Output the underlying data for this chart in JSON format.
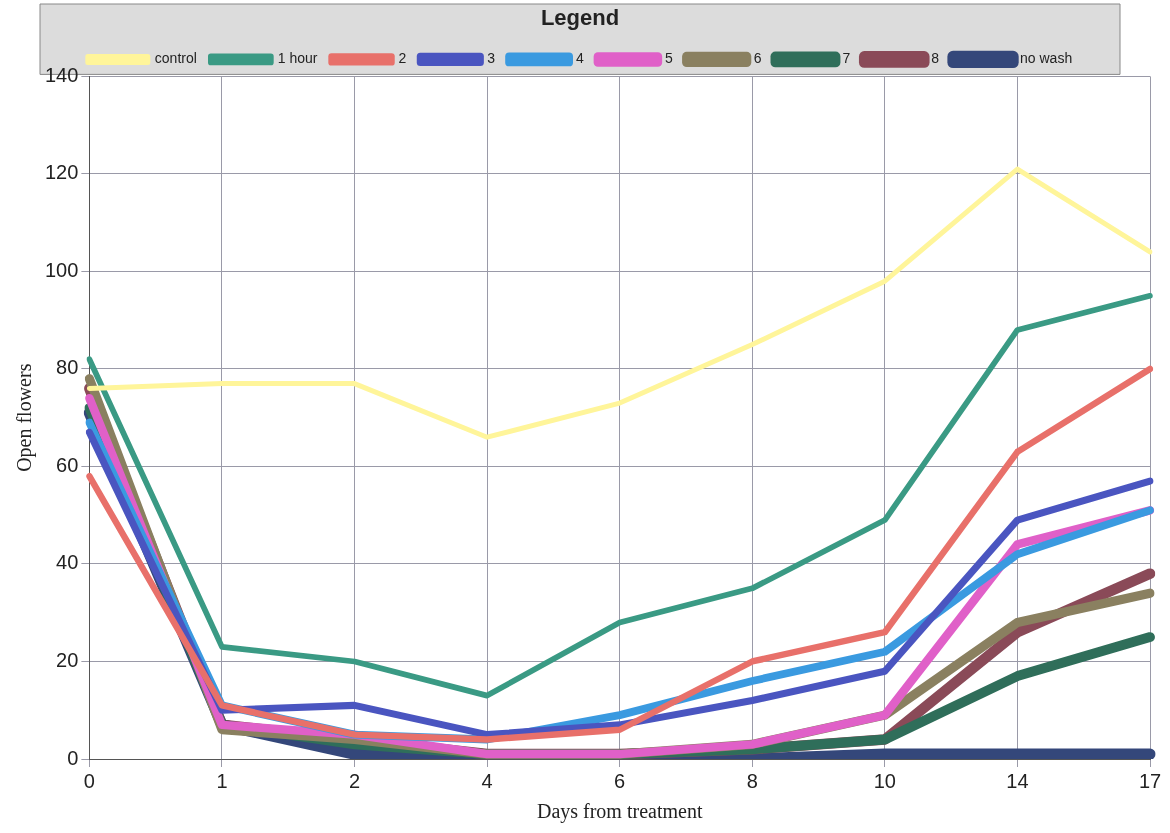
{
  "chart_data": {
    "type": "line",
    "legend_title": "Legend",
    "xlabel": "Days from treatment",
    "ylabel": "Open flowers",
    "categories": [
      "0",
      "1",
      "2",
      "4",
      "6",
      "8",
      "10",
      "14",
      "17"
    ],
    "ylim": [
      0,
      140
    ],
    "yticks": [
      0,
      20,
      40,
      60,
      80,
      100,
      120,
      140
    ],
    "grid": true,
    "legend": "top",
    "marker": "none",
    "line_style": "solid",
    "series": [
      {
        "name": "control",
        "color": "#fff59a",
        "values": [
          76,
          77,
          77,
          66,
          73,
          85,
          98,
          121,
          104
        ]
      },
      {
        "name": "1 hour",
        "color": "#3a9a84",
        "values": [
          82,
          23,
          20,
          13,
          28,
          35,
          49,
          88,
          95
        ]
      },
      {
        "name": "2",
        "color": "#e8706a",
        "values": [
          58,
          11,
          5,
          4,
          6,
          20,
          26,
          63,
          80
        ]
      },
      {
        "name": "3",
        "color": "#4a55c0",
        "values": [
          67,
          10,
          11,
          5,
          7,
          12,
          18,
          49,
          57
        ]
      },
      {
        "name": "4",
        "color": "#3a9ae0",
        "values": [
          69,
          11,
          5,
          4,
          9,
          16,
          22,
          42,
          51
        ]
      },
      {
        "name": "5",
        "color": "#e060c8",
        "values": [
          74,
          7,
          5,
          1,
          1,
          3,
          9,
          44,
          51
        ]
      },
      {
        "name": "6",
        "color": "#8a8060",
        "values": [
          78,
          6,
          4,
          1,
          1,
          3,
          9,
          28,
          34
        ]
      },
      {
        "name": "7",
        "color": "#2f6e5a",
        "values": [
          72,
          7,
          3,
          1,
          1,
          2,
          4,
          17,
          25
        ]
      },
      {
        "name": "8",
        "color": "#8a4a58",
        "values": [
          76,
          7,
          4,
          1,
          1,
          2,
          4,
          26,
          38
        ]
      },
      {
        "name": "no wash",
        "color": "#34477a",
        "values": [
          71,
          7,
          1,
          0,
          0,
          0,
          1,
          1,
          1
        ]
      }
    ]
  }
}
